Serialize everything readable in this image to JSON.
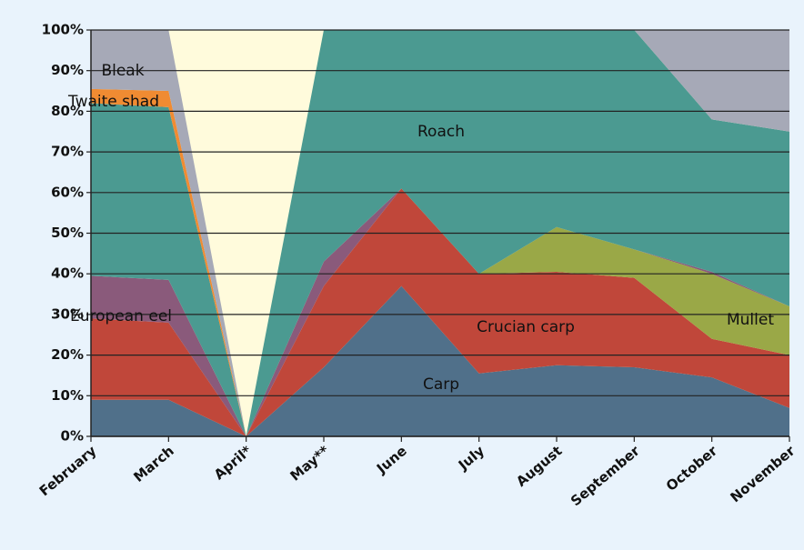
{
  "chart_data": {
    "type": "area_stacked",
    "categories": [
      "February",
      "March",
      "April*",
      "May**",
      "June",
      "July",
      "August",
      "September",
      "October",
      "November"
    ],
    "series": [
      {
        "name": "Carp",
        "color": "#50708a",
        "values": [
          9,
          9,
          0,
          17,
          37,
          15.5,
          17.5,
          17,
          14.5,
          7
        ]
      },
      {
        "name": "Crucian carp",
        "color": "#c0473a",
        "values": [
          20,
          19,
          0,
          20,
          24,
          24.5,
          23,
          22,
          9.5,
          13
        ]
      },
      {
        "name": "Mullet",
        "color": "#9aa847",
        "values": [
          0,
          0,
          0,
          0,
          0,
          0,
          11,
          7,
          16,
          12
        ]
      },
      {
        "name": "European eel",
        "color": "#8a5a7b",
        "values": [
          10.5,
          10.5,
          0,
          6,
          0,
          0,
          0,
          0,
          0.5,
          0
        ]
      },
      {
        "name": "Roach",
        "color": "#4b9a91",
        "values": [
          42.5,
          42.5,
          0,
          57,
          39,
          60,
          48.5,
          54,
          37.5,
          43
        ]
      },
      {
        "name": "Twaite shad",
        "color": "#f08b32",
        "values": [
          3.5,
          4,
          0,
          0,
          0,
          0,
          0,
          0,
          0,
          0
        ]
      },
      {
        "name": "Bleak",
        "color": "#a6a9b7",
        "values": [
          14.5,
          15,
          0,
          0,
          0,
          0,
          0,
          0,
          22,
          25
        ]
      }
    ],
    "ylim": [
      0,
      100
    ],
    "yticks": [
      {
        "value": 0,
        "label": "0%"
      },
      {
        "value": 10,
        "label": "10%"
      },
      {
        "value": 20,
        "label": "20%"
      },
      {
        "value": 30,
        "label": "30%"
      },
      {
        "value": 40,
        "label": "40%"
      },
      {
        "value": 50,
        "label": "50%"
      },
      {
        "value": 60,
        "label": "60%"
      },
      {
        "value": 70,
        "label": "70%"
      },
      {
        "value": 80,
        "label": "80%"
      },
      {
        "value": 90,
        "label": "90%"
      },
      {
        "value": 100,
        "label": "100%"
      }
    ],
    "grid": true
  }
}
